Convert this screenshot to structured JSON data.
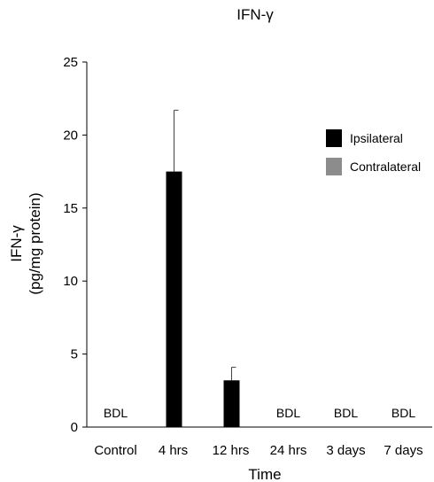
{
  "chart_data": {
    "type": "bar",
    "title": "IFN-γ",
    "xlabel": "Time",
    "ylabel_line1": "IFN-γ",
    "ylabel_line2": "(pg/mg protein)",
    "ylim": [
      0,
      25
    ],
    "yticks": [
      0,
      5,
      10,
      15,
      20,
      25
    ],
    "categories": [
      "Control",
      "4 hrs",
      "12 hrs",
      "24 hrs",
      "3 days",
      "7 days"
    ],
    "series": [
      {
        "name": "Ipsilateral",
        "color": "#000000",
        "values": [
          null,
          17.5,
          3.2,
          null,
          null,
          null
        ],
        "errors": [
          null,
          4.2,
          0.9,
          null,
          null,
          null
        ]
      },
      {
        "name": "Contralateral",
        "color": "#8c8c8c",
        "values": [
          null,
          null,
          null,
          null,
          null,
          null
        ],
        "errors": [
          null,
          null,
          null,
          null,
          null,
          null
        ]
      }
    ],
    "annotations": [
      "BDL",
      "",
      "",
      "BDL",
      "BDL",
      "BDL"
    ],
    "legend_position": "right",
    "grid": false
  }
}
